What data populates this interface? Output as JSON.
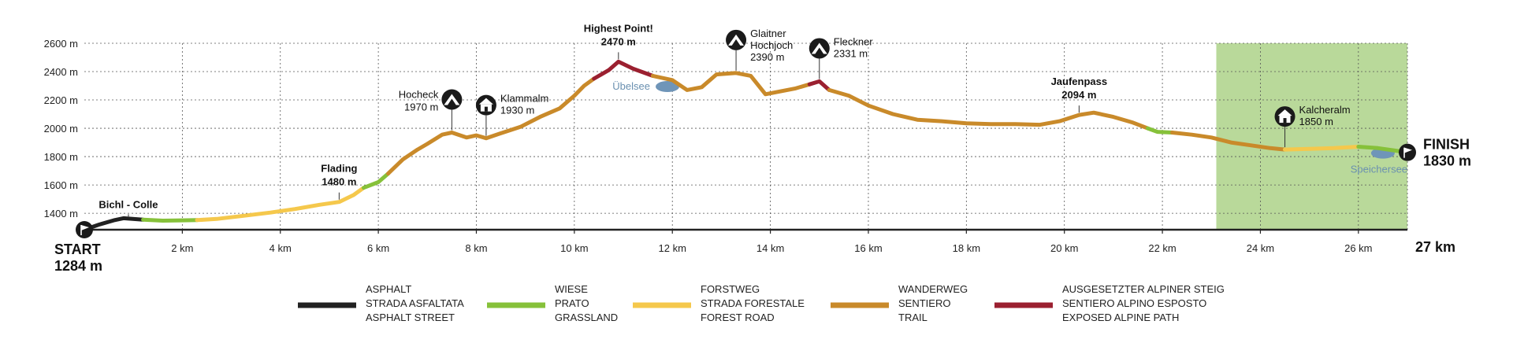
{
  "chart_data": {
    "type": "area",
    "title": "",
    "xlabel": "",
    "ylabel": "",
    "xlim": [
      0,
      27
    ],
    "ylim": [
      1284,
      2600
    ],
    "x_unit": "km",
    "y_unit": "m",
    "x_ticks": [
      {
        "value": 2,
        "label": "2 km"
      },
      {
        "value": 4,
        "label": "4 km"
      },
      {
        "value": 6,
        "label": "6 km"
      },
      {
        "value": 8,
        "label": "8 km"
      },
      {
        "value": 10,
        "label": "10 km"
      },
      {
        "value": 12,
        "label": "12 km"
      },
      {
        "value": 14,
        "label": "14 km"
      },
      {
        "value": 16,
        "label": "16 km"
      },
      {
        "value": 18,
        "label": "18 km"
      },
      {
        "value": 20,
        "label": "20 km"
      },
      {
        "value": 22,
        "label": "22 km"
      },
      {
        "value": 24,
        "label": "24 km"
      },
      {
        "value": 26,
        "label": "26 km"
      }
    ],
    "x_end_label": "27 km",
    "y_ticks": [
      {
        "value": 1400,
        "label": "1400 m"
      },
      {
        "value": 1600,
        "label": "1600 m"
      },
      {
        "value": 1800,
        "label": "1800 m"
      },
      {
        "value": 2000,
        "label": "2000 m"
      },
      {
        "value": 2200,
        "label": "2200 m"
      },
      {
        "value": 2400,
        "label": "2400 m"
      },
      {
        "value": 2600,
        "label": "2600 m"
      }
    ],
    "grid": true,
    "highlight_range": [
      23.1,
      27
    ],
    "highlight_color": "#b9d99a",
    "segments": [
      {
        "surface": "asphalt",
        "points": [
          [
            0,
            1284
          ],
          [
            0.3,
            1320
          ],
          [
            0.6,
            1350
          ],
          [
            0.8,
            1365
          ],
          [
            1.2,
            1355
          ]
        ]
      },
      {
        "surface": "grassland",
        "points": [
          [
            1.2,
            1355
          ],
          [
            1.6,
            1348
          ],
          [
            2.0,
            1350
          ],
          [
            2.3,
            1352
          ]
        ]
      },
      {
        "surface": "forest",
        "points": [
          [
            2.3,
            1352
          ],
          [
            2.7,
            1360
          ],
          [
            3.2,
            1380
          ],
          [
            3.8,
            1405
          ],
          [
            4.3,
            1430
          ],
          [
            4.8,
            1460
          ],
          [
            5.2,
            1480
          ],
          [
            5.5,
            1530
          ],
          [
            5.7,
            1580
          ]
        ]
      },
      {
        "surface": "grassland",
        "points": [
          [
            5.7,
            1580
          ],
          [
            6.0,
            1620
          ],
          [
            6.2,
            1680
          ]
        ]
      },
      {
        "surface": "trail",
        "points": [
          [
            6.2,
            1680
          ],
          [
            6.5,
            1780
          ],
          [
            6.8,
            1850
          ],
          [
            7.0,
            1890
          ],
          [
            7.3,
            1955
          ],
          [
            7.5,
            1970
          ],
          [
            7.8,
            1935
          ],
          [
            8.0,
            1950
          ],
          [
            8.2,
            1930
          ],
          [
            8.5,
            1965
          ],
          [
            8.9,
            2010
          ],
          [
            9.3,
            2080
          ],
          [
            9.7,
            2140
          ],
          [
            10.0,
            2230
          ],
          [
            10.2,
            2300
          ],
          [
            10.4,
            2350
          ]
        ]
      },
      {
        "surface": "alpine",
        "points": [
          [
            10.4,
            2350
          ],
          [
            10.7,
            2410
          ],
          [
            10.9,
            2470
          ],
          [
            11.2,
            2420
          ],
          [
            11.6,
            2370
          ]
        ]
      },
      {
        "surface": "trail",
        "points": [
          [
            11.6,
            2370
          ],
          [
            12.0,
            2340
          ],
          [
            12.3,
            2270
          ],
          [
            12.6,
            2290
          ],
          [
            12.9,
            2380
          ],
          [
            13.3,
            2390
          ],
          [
            13.6,
            2370
          ],
          [
            13.9,
            2240
          ],
          [
            14.2,
            2260
          ],
          [
            14.5,
            2280
          ],
          [
            14.8,
            2310
          ]
        ]
      },
      {
        "surface": "alpine",
        "points": [
          [
            14.8,
            2310
          ],
          [
            15.0,
            2331
          ],
          [
            15.2,
            2270
          ]
        ]
      },
      {
        "surface": "trail",
        "points": [
          [
            15.2,
            2270
          ],
          [
            15.6,
            2230
          ],
          [
            16.0,
            2160
          ],
          [
            16.5,
            2100
          ],
          [
            17.0,
            2060
          ],
          [
            17.5,
            2050
          ],
          [
            18.0,
            2035
          ],
          [
            18.5,
            2030
          ],
          [
            19.0,
            2030
          ],
          [
            19.5,
            2025
          ],
          [
            19.9,
            2050
          ],
          [
            20.3,
            2094
          ],
          [
            20.6,
            2110
          ],
          [
            21.0,
            2080
          ],
          [
            21.4,
            2040
          ],
          [
            21.7,
            2000
          ]
        ]
      },
      {
        "surface": "grassland",
        "points": [
          [
            21.7,
            2000
          ],
          [
            21.9,
            1975
          ],
          [
            22.2,
            1970
          ]
        ]
      },
      {
        "surface": "trail",
        "points": [
          [
            22.2,
            1970
          ],
          [
            22.6,
            1955
          ],
          [
            23.0,
            1935
          ],
          [
            23.4,
            1900
          ],
          [
            23.8,
            1880
          ],
          [
            24.2,
            1860
          ],
          [
            24.5,
            1850
          ]
        ]
      },
      {
        "surface": "forest",
        "points": [
          [
            24.5,
            1850
          ],
          [
            25.0,
            1855
          ],
          [
            25.5,
            1860
          ],
          [
            26.0,
            1870
          ]
        ]
      },
      {
        "surface": "grassland",
        "points": [
          [
            26.0,
            1870
          ],
          [
            26.4,
            1860
          ],
          [
            26.8,
            1840
          ],
          [
            27.0,
            1830
          ]
        ]
      }
    ],
    "waypoints": [
      {
        "name": "Bichl - Colle",
        "elevation_label": "",
        "km": 0.9,
        "elev": 1360,
        "icon": "none",
        "bold": true
      },
      {
        "name": "Flading",
        "elevation_label": "1480 m",
        "km": 5.2,
        "elev": 1480,
        "icon": "none",
        "bold": true
      },
      {
        "name": "Hocheck",
        "elevation_label": "1970 m",
        "km": 7.5,
        "elev": 1970,
        "icon": "peak",
        "bold": false
      },
      {
        "name": "Klammalm",
        "elevation_label": "1930 m",
        "km": 8.2,
        "elev": 1930,
        "icon": "hut",
        "bold": false
      },
      {
        "name": "Highest Point!",
        "elevation_label": "2470 m",
        "km": 10.9,
        "elev": 2470,
        "icon": "none",
        "bold": true
      },
      {
        "name": "Glaitner Hochjoch",
        "elevation_label": "2390 m",
        "km": 13.3,
        "elev": 2390,
        "icon": "peak",
        "bold": false
      },
      {
        "name": "Fleckner",
        "elevation_label": "2331 m",
        "km": 15.0,
        "elev": 2331,
        "icon": "peak",
        "bold": false
      },
      {
        "name": "Jaufenpass",
        "elevation_label": "2094 m",
        "km": 20.3,
        "elev": 2094,
        "icon": "none",
        "bold": true
      },
      {
        "name": "Kalcheralm",
        "elevation_label": "1850 m",
        "km": 24.5,
        "elev": 1850,
        "icon": "hut",
        "bold": false
      }
    ],
    "lakes": [
      {
        "name": "Übelsee",
        "km": 11.9,
        "elev": 2300
      },
      {
        "name": "Speichersee",
        "km": 26.5,
        "elev": 1830
      }
    ],
    "start": {
      "label": "START",
      "elevation": "1284 m"
    },
    "finish": {
      "label": "FINISH",
      "elevation": "1830 m"
    },
    "legend": [
      {
        "key": "asphalt",
        "color": "#222222",
        "lines": [
          "ASPHALT",
          "STRADA ASFALTATA",
          "ASPHALT STREET"
        ]
      },
      {
        "key": "grassland",
        "color": "#86c13a",
        "lines": [
          "WIESE",
          "PRATO",
          "GRASSLAND"
        ]
      },
      {
        "key": "forest",
        "color": "#f5c84c",
        "lines": [
          "FORSTWEG",
          "STRADA FORESTALE",
          "FOREST ROAD"
        ]
      },
      {
        "key": "trail",
        "color": "#c98a2a",
        "lines": [
          "WANDERWEG",
          "SENTIERO",
          "TRAIL"
        ]
      },
      {
        "key": "alpine",
        "color": "#9b2030",
        "lines": [
          "AUSGESETZTER ALPINER STEIG",
          "SENTIERO ALPINO ESPOSTO",
          "EXPOSED ALPINE PATH"
        ]
      }
    ]
  }
}
